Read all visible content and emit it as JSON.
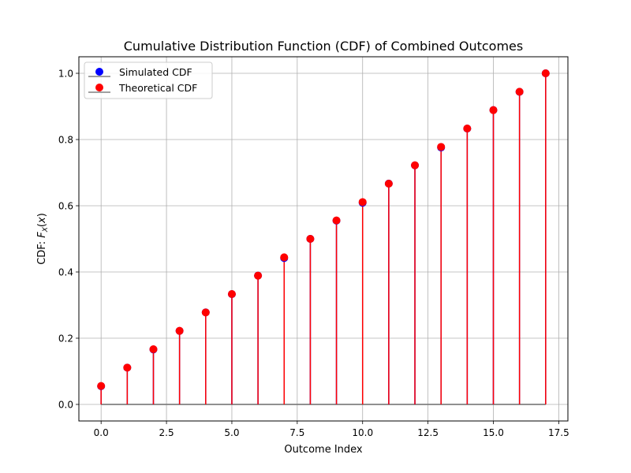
{
  "chart_data": {
    "type": "stem",
    "title": "Cumulative Distribution Function (CDF) of Combined Outcomes",
    "xlabel": "Outcome Index",
    "ylabel": "CDF: F_X(x)",
    "xlim": [
      -0.85,
      17.85
    ],
    "ylim": [
      -0.05,
      1.05
    ],
    "xticks": [
      0.0,
      2.5,
      5.0,
      7.5,
      10.0,
      12.5,
      15.0,
      17.5
    ],
    "xtick_labels": [
      "0.0",
      "2.5",
      "5.0",
      "7.5",
      "10.0",
      "12.5",
      "15.0",
      "17.5"
    ],
    "yticks": [
      0.0,
      0.2,
      0.4,
      0.6,
      0.8,
      1.0
    ],
    "ytick_labels": [
      "0.0",
      "0.2",
      "0.4",
      "0.6",
      "0.8",
      "1.0"
    ],
    "grid": true,
    "legend_position": "top-left",
    "x": [
      0,
      1,
      2,
      3,
      4,
      5,
      6,
      7,
      8,
      9,
      10,
      11,
      12,
      13,
      14,
      15,
      16,
      17
    ],
    "series": [
      {
        "name": "Simulated CDF",
        "color": "#0000ff",
        "stem_color": "#0000ff",
        "baseline_color": "#808080",
        "values": [
          0.055,
          0.111,
          0.166,
          0.222,
          0.278,
          0.333,
          0.389,
          0.442,
          0.5,
          0.555,
          0.609,
          0.667,
          0.722,
          0.776,
          0.833,
          0.889,
          0.944,
          1.0
        ]
      },
      {
        "name": "Theoretical CDF",
        "color": "#ff0000",
        "stem_color": "#ff0000",
        "baseline_color": "#808080",
        "values": [
          0.0556,
          0.1111,
          0.1667,
          0.2222,
          0.2778,
          0.3333,
          0.3889,
          0.4444,
          0.5,
          0.5556,
          0.6111,
          0.6667,
          0.7222,
          0.7778,
          0.8333,
          0.8889,
          0.9444,
          1.0
        ]
      }
    ]
  }
}
